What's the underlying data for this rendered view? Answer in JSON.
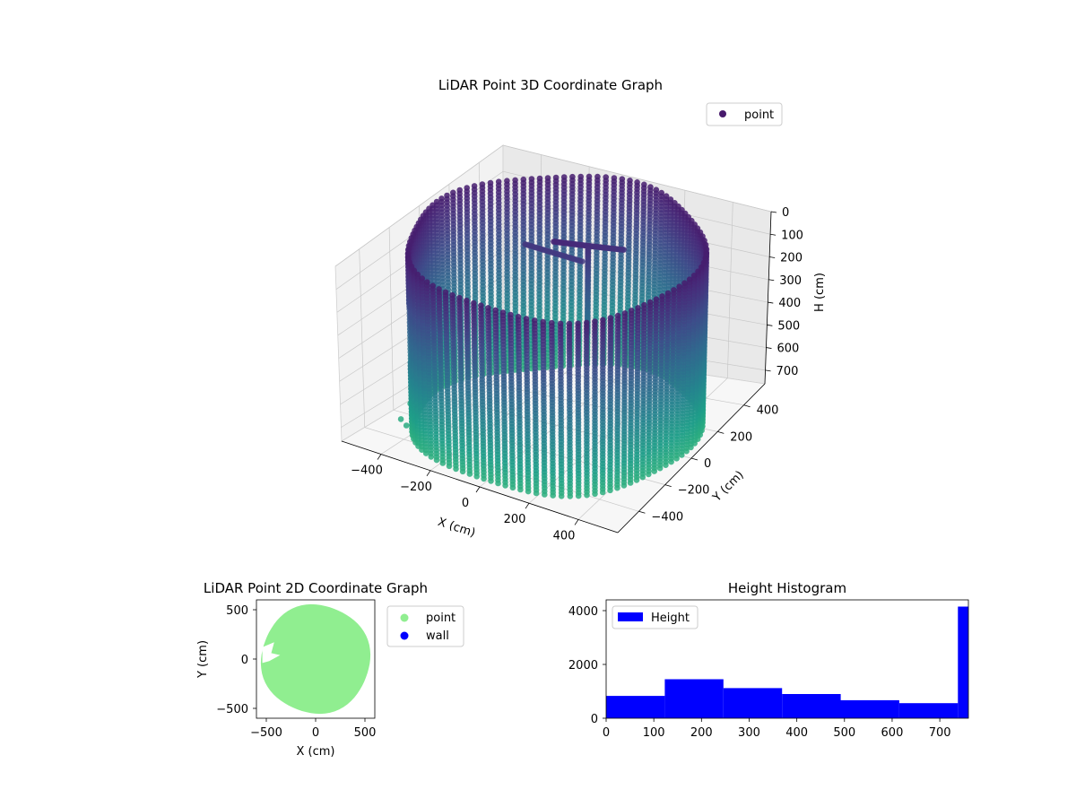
{
  "chart_data": [
    {
      "type": "scatter",
      "projection": "3d",
      "title": "LiDAR Point 3D Coordinate Graph",
      "xlabel": "X (cm)",
      "ylabel": "Y (cm)",
      "zlabel": "H (cm)",
      "xlim": [
        -560,
        560
      ],
      "ylim": [
        -560,
        560
      ],
      "zlim": [
        0,
        760
      ],
      "z_inverted": true,
      "xticks": [
        "−400",
        "−200",
        "0",
        "200",
        "400"
      ],
      "yticks": [
        "−400",
        "−200",
        "0",
        "200",
        "400"
      ],
      "zticks": [
        "0",
        "100",
        "200",
        "300",
        "400",
        "500",
        "600",
        "700"
      ],
      "legend": {
        "position": "top-right",
        "entries": [
          {
            "name": "point",
            "color": "#481a6c"
          }
        ]
      },
      "colormap": "viridis",
      "cylinder": {
        "radius_cm": 520,
        "height_cm": 760
      },
      "stray_points": [
        {
          "x": -520,
          "y": -150,
          "h": 740
        },
        {
          "x": -470,
          "y": -300,
          "h": 735
        },
        {
          "x": -430,
          "y": -330,
          "h": 738
        }
      ]
    },
    {
      "type": "scatter",
      "title": "LiDAR Point 2D Coordinate Graph",
      "xlabel": "X (cm)",
      "ylabel": "Y (cm)",
      "xlim": [
        -600,
        600
      ],
      "ylim": [
        -600,
        600
      ],
      "xticks": [
        "−500",
        "0",
        "500"
      ],
      "yticks": [
        "−500",
        "0",
        "500"
      ],
      "legend": {
        "position": "outside-right",
        "entries": [
          {
            "name": "point",
            "color": "#90ee90"
          },
          {
            "name": "wall",
            "color": "#0000ff"
          }
        ]
      }
    },
    {
      "type": "histogram",
      "title": "Height Histogram",
      "xlim": [
        0,
        760
      ],
      "ylim": [
        0,
        4400
      ],
      "xticks": [
        "0",
        "100",
        "200",
        "300",
        "400",
        "500",
        "600",
        "700"
      ],
      "yticks": [
        "0",
        "2000",
        "4000"
      ],
      "bins": [
        {
          "x0": 0,
          "x1": 123,
          "count": 830
        },
        {
          "x0": 123,
          "x1": 246,
          "count": 1450
        },
        {
          "x0": 246,
          "x1": 369,
          "count": 1120
        },
        {
          "x0": 369,
          "x1": 492,
          "count": 900
        },
        {
          "x0": 492,
          "x1": 615,
          "count": 670
        },
        {
          "x0": 615,
          "x1": 738,
          "count": 560
        },
        {
          "x0": 738,
          "x1": 760,
          "count": 4150
        }
      ],
      "color": "#0000ff",
      "legend": {
        "position": "top-left",
        "entries": [
          {
            "name": "Height",
            "color": "#0000ff"
          }
        ]
      }
    }
  ]
}
